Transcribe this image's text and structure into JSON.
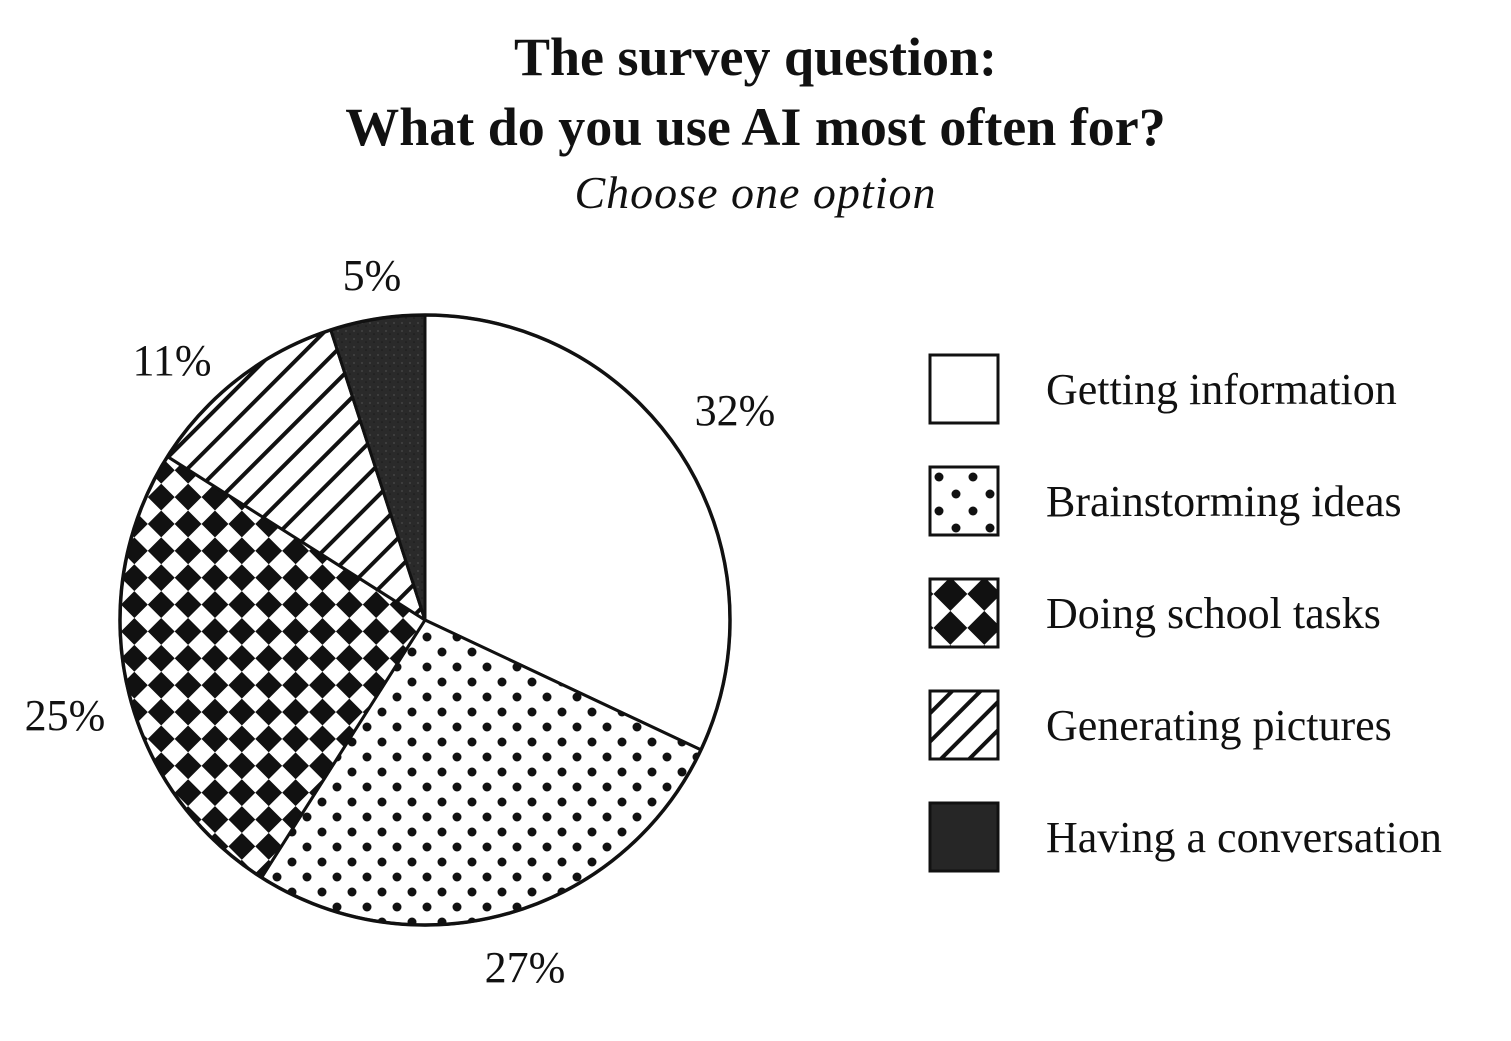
{
  "chart_data": {
    "type": "pie",
    "title": "The survey question:",
    "subtitle_line": "What do you use AI most often for?",
    "instruction": "Choose one option",
    "slices": [
      {
        "label": "Getting information",
        "value": 32,
        "value_label": "32%",
        "pattern": "blank"
      },
      {
        "label": "Brainstorming ideas",
        "value": 27,
        "value_label": "27%",
        "pattern": "dots"
      },
      {
        "label": "Doing school tasks",
        "value": 25,
        "value_label": "25%",
        "pattern": "checker"
      },
      {
        "label": "Generating pictures",
        "value": 11,
        "value_label": "11%",
        "pattern": "diagonal-stripes"
      },
      {
        "label": "Having a conversation",
        "value": 5,
        "value_label": "5%",
        "pattern": "solid-dark"
      }
    ],
    "start": "12 o'clock",
    "direction": "clockwise",
    "legend_position": "right"
  }
}
